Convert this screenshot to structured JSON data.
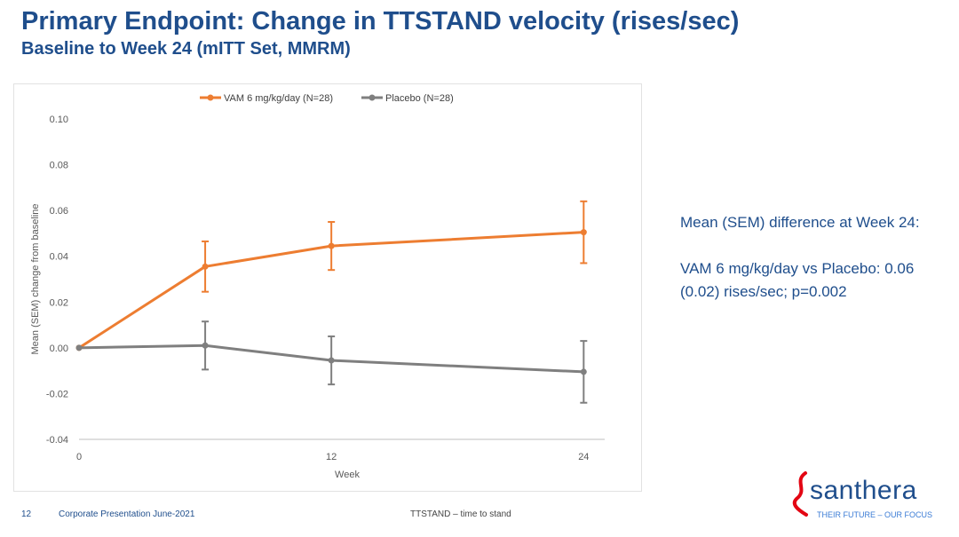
{
  "slide": {
    "title": "Primary Endpoint: Change in TTSTAND velocity (rises/sec)",
    "subtitle": "Baseline to Week 24 (mITT Set, MMRM)"
  },
  "annotation": {
    "line1": "Mean (SEM) difference at Week 24:",
    "line2": "VAM 6 mg/kg/day vs Placebo: 0.06 (0.02) rises/sec; p=0.002"
  },
  "footer": {
    "page_number": "12",
    "presentation": "Corporate Presentation June-2021",
    "tagline": "TTSTAND – time to stand"
  },
  "logo": {
    "wordmark": "santhera",
    "tagline": "THEIR FUTURE – OUR FOCUS"
  },
  "chart_data": {
    "type": "line",
    "title": "",
    "xlabel": "Week",
    "ylabel": "Mean (SEM) change from baseline",
    "xlim": [
      0,
      25
    ],
    "ylim": [
      -0.04,
      0.1
    ],
    "xticks": [
      0,
      12,
      24
    ],
    "yticks": [
      -0.04,
      -0.02,
      0.0,
      0.02,
      0.04,
      0.06,
      0.08,
      0.1
    ],
    "ytick_labels": [
      "-0.04",
      "-0.02",
      "0.00",
      "0.02",
      "0.04",
      "0.06",
      "0.08",
      "0.10"
    ],
    "grid": false,
    "legend_position": "top",
    "series": [
      {
        "name": "VAM 6 mg/kg/day (N=28)",
        "color": "#ed7d31",
        "x": [
          0,
          6,
          12,
          24
        ],
        "y": [
          0.0,
          0.0355,
          0.0445,
          0.0505
        ],
        "err_low": [
          null,
          0.0245,
          0.034,
          0.037
        ],
        "err_high": [
          null,
          0.0465,
          0.055,
          0.064
        ]
      },
      {
        "name": "Placebo  (N=28)",
        "color": "#7f7f7f",
        "x": [
          0,
          6,
          12,
          24
        ],
        "y": [
          0.0,
          0.001,
          -0.0055,
          -0.0105
        ],
        "err_low": [
          null,
          -0.0095,
          -0.016,
          -0.024
        ],
        "err_high": [
          null,
          0.0115,
          0.005,
          0.003
        ]
      }
    ]
  }
}
